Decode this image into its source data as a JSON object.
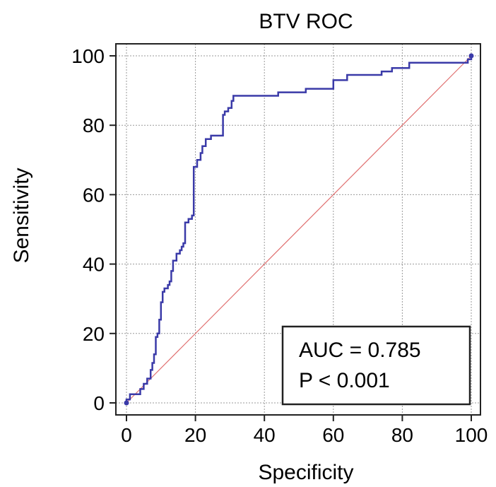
{
  "chart_data": {
    "type": "line",
    "title": "BTV ROC",
    "xlabel": "Specificity",
    "ylabel": "Sensitivity",
    "xlim": [
      0,
      100
    ],
    "ylim": [
      0,
      100
    ],
    "xticks": [
      0,
      20,
      40,
      60,
      80,
      100
    ],
    "yticks": [
      0,
      20,
      40,
      60,
      80,
      100
    ],
    "grid": true,
    "series": [
      {
        "color": "#3a3aa8",
        "points": [
          [
            0,
            0
          ],
          [
            0,
            1
          ],
          [
            1,
            1
          ],
          [
            1,
            2.5
          ],
          [
            3,
            2.5
          ],
          [
            4,
            2.5
          ],
          [
            4,
            4
          ],
          [
            5,
            4
          ],
          [
            5,
            5.5
          ],
          [
            6,
            5.5
          ],
          [
            6,
            7
          ],
          [
            7,
            7
          ],
          [
            7,
            9.5
          ],
          [
            7.5,
            9.5
          ],
          [
            7.5,
            11.5
          ],
          [
            8,
            11.5
          ],
          [
            8,
            14
          ],
          [
            8.5,
            14
          ],
          [
            8.5,
            19
          ],
          [
            9,
            19
          ],
          [
            9,
            20
          ],
          [
            9.5,
            20
          ],
          [
            9.5,
            24
          ],
          [
            10,
            24
          ],
          [
            10,
            29
          ],
          [
            10.5,
            29
          ],
          [
            10.5,
            32
          ],
          [
            11,
            32
          ],
          [
            11,
            33
          ],
          [
            12,
            33
          ],
          [
            12,
            34
          ],
          [
            12.5,
            34
          ],
          [
            12.5,
            35
          ],
          [
            13,
            35
          ],
          [
            13,
            38
          ],
          [
            13.5,
            38
          ],
          [
            13.5,
            41
          ],
          [
            14.5,
            41
          ],
          [
            14.5,
            43
          ],
          [
            15.5,
            43
          ],
          [
            15.5,
            44
          ],
          [
            16,
            44
          ],
          [
            16,
            45
          ],
          [
            16.5,
            45
          ],
          [
            16.5,
            46
          ],
          [
            17,
            46
          ],
          [
            17,
            52
          ],
          [
            18,
            52
          ],
          [
            18,
            53
          ],
          [
            19,
            53
          ],
          [
            19,
            54
          ],
          [
            19.5,
            54
          ],
          [
            19.5,
            68
          ],
          [
            20.5,
            68
          ],
          [
            20.5,
            70
          ],
          [
            21.5,
            70
          ],
          [
            21.5,
            72
          ],
          [
            22,
            72
          ],
          [
            22,
            74
          ],
          [
            23,
            74
          ],
          [
            23,
            76
          ],
          [
            24.5,
            76
          ],
          [
            24.5,
            77
          ],
          [
            28,
            77
          ],
          [
            28,
            83
          ],
          [
            28.5,
            83
          ],
          [
            28.5,
            84
          ],
          [
            29.5,
            84
          ],
          [
            29.5,
            85
          ],
          [
            30.5,
            85
          ],
          [
            30.5,
            87
          ],
          [
            31,
            87
          ],
          [
            31,
            88.5
          ],
          [
            44,
            88.5
          ],
          [
            44,
            89.5
          ],
          [
            52,
            89.5
          ],
          [
            52,
            90.5
          ],
          [
            60,
            90.5
          ],
          [
            60,
            93
          ],
          [
            64,
            93
          ],
          [
            64,
            94.5
          ],
          [
            74,
            94.5
          ],
          [
            74,
            95.5
          ],
          [
            77,
            95.5
          ],
          [
            77,
            96.5
          ],
          [
            82,
            96.5
          ],
          [
            82,
            98
          ],
          [
            99,
            98
          ],
          [
            99,
            99
          ],
          [
            100,
            99
          ],
          [
            100,
            100
          ]
        ]
      },
      {
        "color": "#e07070",
        "points": [
          [
            0,
            0
          ],
          [
            100,
            100
          ]
        ]
      }
    ],
    "annotation": {
      "line1": "AUC = 0.785",
      "line2": "P < 0.001",
      "placement": "bottom-right"
    }
  }
}
